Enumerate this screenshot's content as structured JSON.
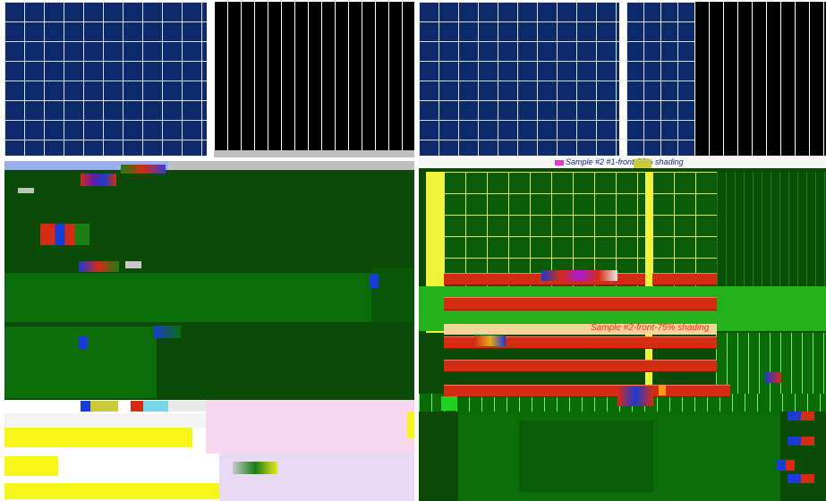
{
  "panels": {
    "top_right_title": "Sample #2 #1-front-75% shading",
    "band_label": "Sample #2-front-75% shading"
  },
  "colors": {
    "navy": "#0e2a6b",
    "black": "#000000",
    "dark_green": "#0c4a07",
    "bright_green": "#23b21b",
    "yellow": "#f2f23b",
    "red": "#d42b13",
    "pink": "#f7d6ef"
  }
}
